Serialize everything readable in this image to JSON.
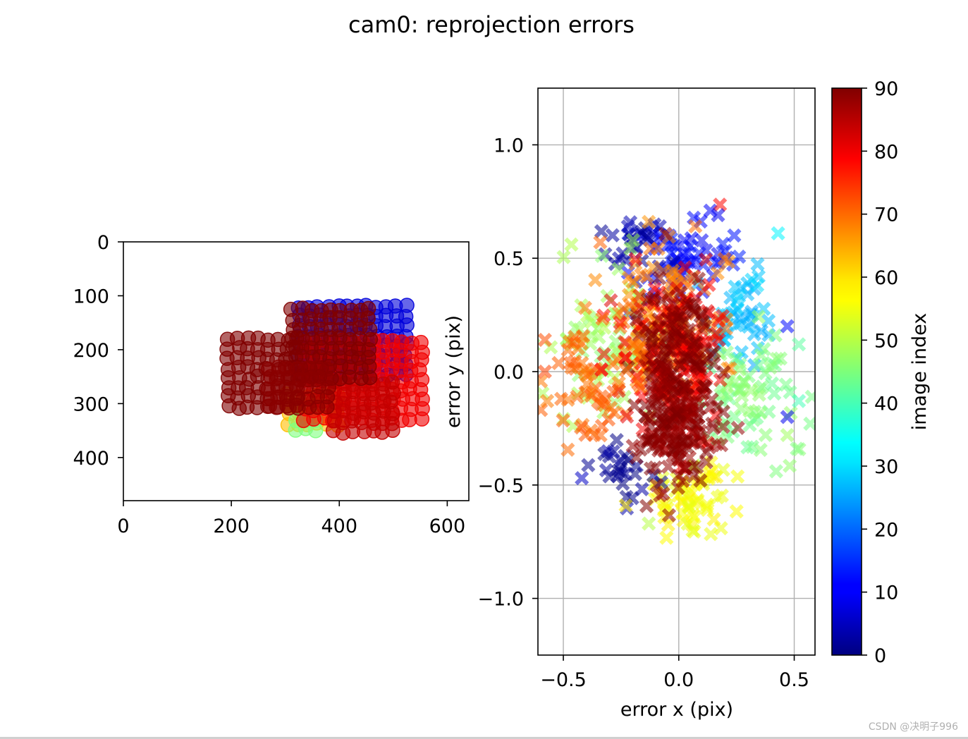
{
  "figure": {
    "title": "cam0: reprojection errors"
  },
  "watermark": "CSDN @决明子996",
  "chart_data": [
    {
      "type": "scatter",
      "panel": "reprojected points in image",
      "xlim": [
        0,
        640
      ],
      "ylim": [
        480,
        0
      ],
      "xticks": [
        0,
        200,
        400,
        600
      ],
      "yticks": [
        0,
        100,
        200,
        300,
        400
      ],
      "xlabel": "",
      "ylabel": "",
      "grid": false,
      "colormap": "jet",
      "color_range": [
        0,
        90
      ],
      "groups": [
        {
          "name": "orange-yellow board",
          "x": [
            305,
            395
          ],
          "y": [
            285,
            340
          ],
          "index": 62
        },
        {
          "name": "green board edge",
          "x": [
            320,
            372
          ],
          "y": [
            330,
            350
          ],
          "index": 45
        },
        {
          "name": "blue board",
          "x": [
            325,
            535
          ],
          "y": [
            120,
            255
          ],
          "index": 8
        },
        {
          "name": "red board",
          "x": [
            335,
            560
          ],
          "y": [
            185,
            345
          ],
          "index": 80
        },
        {
          "name": "bright red board",
          "x": [
            390,
            505
          ],
          "y": [
            262,
            352
          ],
          "index": 84
        },
        {
          "name": "dark red board (upper)",
          "x": [
            312,
            458
          ],
          "y": [
            125,
            255
          ],
          "index": 90
        },
        {
          "name": "dark red board (left)",
          "x": [
            195,
            330
          ],
          "y": [
            180,
            318
          ],
          "index": 90
        },
        {
          "name": "dark red board (mid)",
          "x": [
            270,
            395
          ],
          "y": [
            235,
            315
          ],
          "index": 89
        }
      ]
    },
    {
      "type": "scatter",
      "panel": "reprojection errors",
      "xlim": [
        -0.61,
        0.59
      ],
      "ylim": [
        -1.25,
        1.25
      ],
      "xticks": [
        -0.5,
        0.0,
        0.5
      ],
      "yticks": [
        -1.0,
        -0.5,
        0.0,
        0.5,
        1.0
      ],
      "xtick_labels": [
        "−0.5",
        "0.0",
        "0.5"
      ],
      "ytick_labels": [
        "−1.0",
        "−0.5",
        "0.0",
        "0.5",
        "1.0"
      ],
      "xlabel": "error x (pix)",
      "ylabel": "error y (pix)",
      "grid": true,
      "marker": "x",
      "colormap": "jet",
      "color_range": [
        0,
        90
      ],
      "clusters": [
        {
          "name": "blue top cluster",
          "cx": 0.0,
          "cy": 0.5,
          "sx": 0.1,
          "sy": 0.09,
          "index": 12
        },
        {
          "name": "navy top cluster",
          "cx": -0.15,
          "cy": 0.55,
          "sx": 0.08,
          "sy": 0.07,
          "index": 3
        },
        {
          "name": "cyan right cluster",
          "cx": 0.25,
          "cy": 0.25,
          "sx": 0.08,
          "sy": 0.12,
          "index": 28
        },
        {
          "name": "green right cluster",
          "cx": 0.3,
          "cy": -0.1,
          "sx": 0.1,
          "sy": 0.15,
          "index": 45
        },
        {
          "name": "light green spread",
          "cx": -0.3,
          "cy": 0.15,
          "sx": 0.12,
          "sy": 0.2,
          "index": 48
        },
        {
          "name": "yellow bottom cluster",
          "cx": 0.05,
          "cy": -0.55,
          "sx": 0.1,
          "sy": 0.08,
          "index": 56
        },
        {
          "name": "navy bottom cluster",
          "cx": -0.25,
          "cy": -0.45,
          "sx": 0.06,
          "sy": 0.06,
          "index": 2
        },
        {
          "name": "orange core",
          "cx": -0.05,
          "cy": 0.2,
          "sx": 0.13,
          "sy": 0.18,
          "index": 68
        },
        {
          "name": "red core",
          "cx": -0.02,
          "cy": 0.05,
          "sx": 0.12,
          "sy": 0.2,
          "index": 80
        },
        {
          "name": "dark red core",
          "cx": 0.0,
          "cy": 0.05,
          "sx": 0.09,
          "sy": 0.18,
          "index": 90
        },
        {
          "name": "dark red lower core",
          "cx": 0.0,
          "cy": -0.3,
          "sx": 0.08,
          "sy": 0.12,
          "index": 89
        },
        {
          "name": "orange left tail",
          "cx": -0.4,
          "cy": -0.05,
          "sx": 0.1,
          "sy": 0.15,
          "index": 70
        }
      ],
      "outliers": [
        {
          "x": 0.43,
          "y": 0.61,
          "index": 33
        },
        {
          "x": 0.34,
          "y": 0.38,
          "index": 31
        },
        {
          "x": 0.47,
          "y": 0.2,
          "index": 12
        },
        {
          "x": 0.52,
          "y": 0.12,
          "index": 42
        },
        {
          "x": 0.52,
          "y": -0.13,
          "index": 40
        },
        {
          "x": 0.47,
          "y": -0.2,
          "index": 10
        },
        {
          "x": 0.47,
          "y": -0.28,
          "index": 48
        },
        {
          "x": -0.58,
          "y": 0.14,
          "index": 72
        },
        {
          "x": -0.57,
          "y": -0.13,
          "index": 68
        },
        {
          "x": -0.58,
          "y": 0.0,
          "index": 73
        },
        {
          "x": -0.34,
          "y": 0.57,
          "index": 70
        },
        {
          "x": -0.42,
          "y": -0.47,
          "index": 6
        },
        {
          "x": -0.22,
          "y": 0.64,
          "index": 5
        },
        {
          "x": -0.13,
          "y": 0.66,
          "index": 66
        },
        {
          "x": 0.17,
          "y": 0.69,
          "index": 10
        },
        {
          "x": 0.24,
          "y": 0.6,
          "index": 13
        },
        {
          "x": -0.23,
          "y": -0.59,
          "index": 58
        },
        {
          "x": -0.13,
          "y": -0.67,
          "index": 50
        },
        {
          "x": 0.06,
          "y": -0.7,
          "index": 54
        }
      ],
      "colorbar": {
        "label": "image index",
        "ticks": [
          0,
          10,
          20,
          30,
          40,
          50,
          60,
          70,
          80,
          90
        ]
      }
    }
  ]
}
